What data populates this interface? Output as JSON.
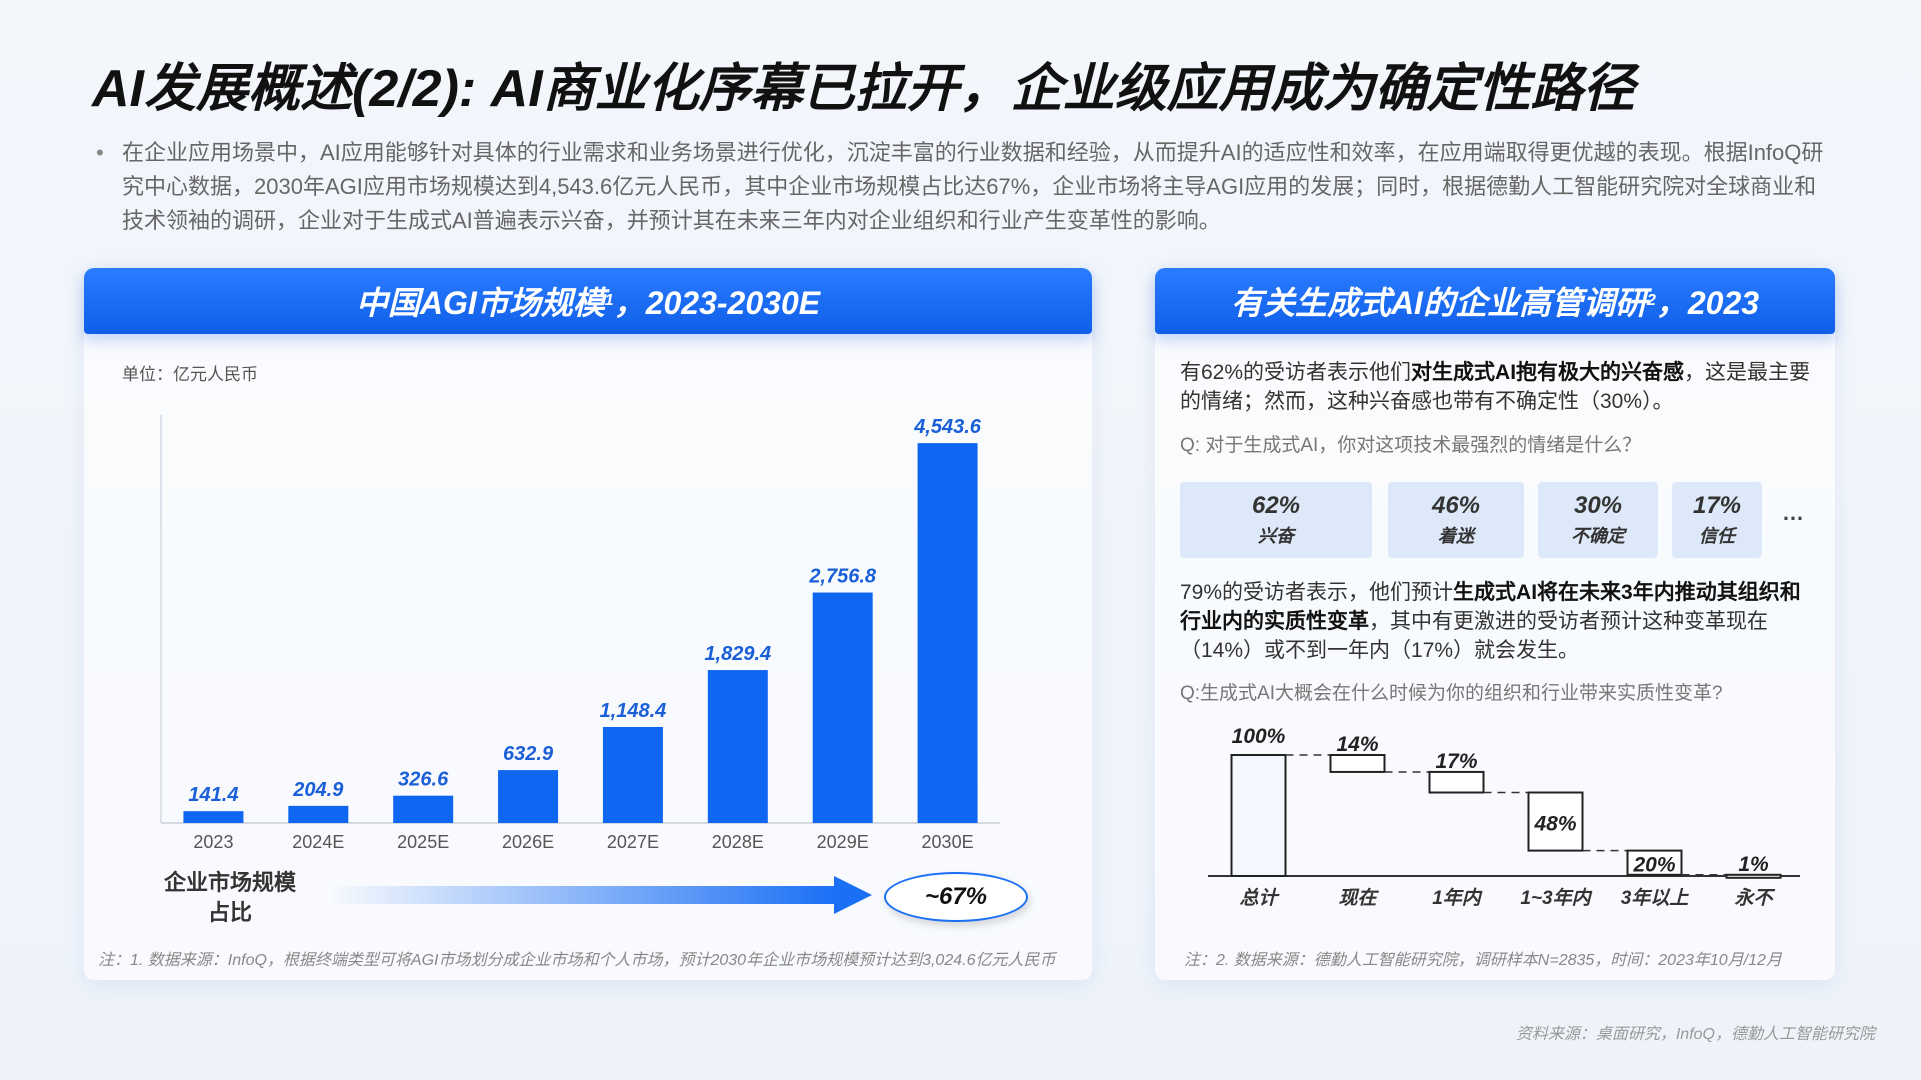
{
  "title": "AI发展概述(2/2): AI商业化序幕已拉开，企业级应用成为确定性路径",
  "intro": "在企业应用场景中，AI应用能够针对具体的行业需求和业务场景进行优化，沉淀丰富的行业数据和经验，从而提升AI的适应性和效率，在应用端取得更优越的表现。根据InfoQ研究中心数据，2030年AGI应用市场规模达到4,543.6亿元人民币，其中企业市场规模占比达67%，企业市场将主导AGI应用的发展；同时，根据德勤人工智能研究院对全球商业和技术领袖的调研，企业对于生成式AI普遍表示兴奋，并预计其在未来三年内对企业组织和行业产生变革性的影响。",
  "left_panel": {
    "header": "中国AGI市场规模",
    "header_sup": "1",
    "header_suffix": "，2023-2030E",
    "unit": "单位：亿元人民币",
    "ratio_label_1": "企业市场规模",
    "ratio_label_2": "占比",
    "ratio_value": "~67%",
    "note": "注：1. 数据来源：InfoQ，根据终端类型可将AGI市场划分成企业市场和个人市场，预计2030年企业市场规模预计达到3,024.6亿元人民币"
  },
  "right_panel": {
    "header": "有关生成式AI的企业高管调研",
    "header_sup": "2",
    "header_suffix": "，2023",
    "text1_a": "有62%的受访者表示他们",
    "text1_b": "对生成式AI抱有极大的兴奋感",
    "text1_c": "，这是最主要的情绪；然而，这种兴奋感也带有不确定性（30%）。",
    "q1": "Q: 对于生成式AI，你对这项技术最强烈的情绪是什么？",
    "chips": [
      {
        "pct": "62%",
        "label": "兴奋"
      },
      {
        "pct": "46%",
        "label": "着迷"
      },
      {
        "pct": "30%",
        "label": "不确定"
      },
      {
        "pct": "17%",
        "label": "信任"
      }
    ],
    "ellipsis": "…",
    "text2_a": "79%的受访者表示，他们预计",
    "text2_b": "生成式AI将在未来3年内推动其组织和行业内的实质性变革",
    "text2_c": "，其中有更激进的受访者预计这种变革现在（14%）或不到一年内（17%）就会发生。",
    "q2": "Q:生成式AI大概会在什么时候为你的组织和行业带来实质性变革?",
    "note": "注：2. 数据来源：德勤人工智能研究院，调研样本N=2835，时间：2023年10月/12月"
  },
  "source": "资料来源：桌面研究，InfoQ，德勤人工智能研究院",
  "colors": {
    "accent": "#0f66f0",
    "chip_bg": "#dde9f8"
  },
  "chart_data": [
    {
      "type": "bar",
      "categories": [
        "2023",
        "2024E",
        "2025E",
        "2026E",
        "2027E",
        "2028E",
        "2029E",
        "2030E"
      ],
      "values": [
        141.4,
        204.9,
        326.6,
        632.9,
        1148.4,
        1829.4,
        2756.8,
        4543.6
      ],
      "value_labels": [
        "141.4",
        "204.9",
        "326.6",
        "632.9",
        "1,148.4",
        "1,829.4",
        "2,756.8",
        "4,543.6"
      ],
      "title": "中国AGI市场规模，2023-2030E",
      "ylim": [
        0,
        5000
      ]
    },
    {
      "type": "waterfall",
      "categories": [
        "总计",
        "现在",
        "1年内",
        "1~3年内",
        "3年以上",
        "永不"
      ],
      "values": [
        100,
        14,
        17,
        48,
        20,
        1
      ],
      "value_labels": [
        "100%",
        "14%",
        "17%",
        "48%",
        "20%",
        "1%"
      ],
      "ylim": [
        0,
        100
      ]
    }
  ]
}
